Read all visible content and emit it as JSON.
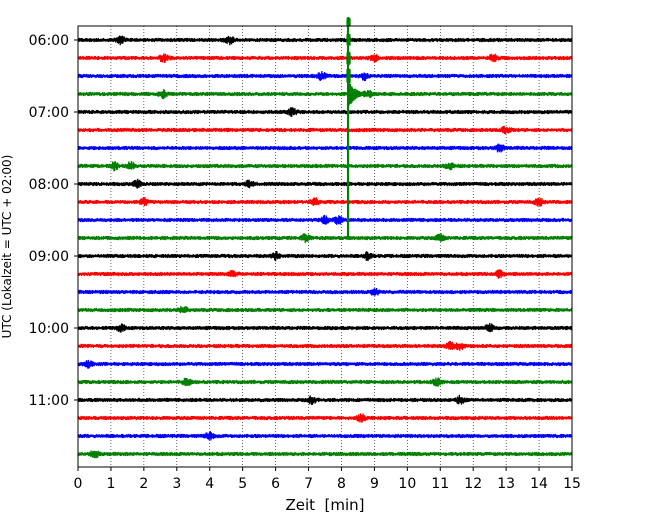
{
  "chart_data": {
    "type": "line",
    "title": "",
    "xlabel": "Zeit  [min]",
    "ylabel": "UTC (Lokalzeit = UTC + 02:00)",
    "xlim": [
      0,
      15
    ],
    "x_ticks": [
      0,
      1,
      2,
      3,
      4,
      5,
      6,
      7,
      8,
      9,
      10,
      11,
      12,
      13,
      14,
      15
    ],
    "x_tick_labels": [
      "0",
      "1",
      "2",
      "3",
      "4",
      "5",
      "6",
      "7",
      "8",
      "9",
      "10",
      "11",
      "12",
      "13",
      "14",
      "15"
    ],
    "y_tick_labels": [
      "06:00",
      "07:00",
      "08:00",
      "09:00",
      "10:00",
      "11:00"
    ],
    "y_tick_rows": [
      0,
      4,
      8,
      12,
      16,
      20
    ],
    "grid": "vertical-dotted",
    "trace_colors": [
      "#000000",
      "#ff0000",
      "#0000ff",
      "#008000"
    ],
    "rows": [
      {
        "start": "06:00",
        "color": "#000000"
      },
      {
        "start": "06:15",
        "color": "#ff0000"
      },
      {
        "start": "06:30",
        "color": "#0000ff"
      },
      {
        "start": "06:45",
        "color": "#008000"
      },
      {
        "start": "07:00",
        "color": "#000000"
      },
      {
        "start": "07:15",
        "color": "#ff0000"
      },
      {
        "start": "07:30",
        "color": "#0000ff"
      },
      {
        "start": "07:45",
        "color": "#008000"
      },
      {
        "start": "08:00",
        "color": "#000000"
      },
      {
        "start": "08:15",
        "color": "#ff0000"
      },
      {
        "start": "08:30",
        "color": "#0000ff"
      },
      {
        "start": "08:45",
        "color": "#008000"
      },
      {
        "start": "09:00",
        "color": "#000000"
      },
      {
        "start": "09:15",
        "color": "#ff0000"
      },
      {
        "start": "09:30",
        "color": "#0000ff"
      },
      {
        "start": "09:45",
        "color": "#008000"
      },
      {
        "start": "10:00",
        "color": "#000000"
      },
      {
        "start": "10:15",
        "color": "#ff0000"
      },
      {
        "start": "10:30",
        "color": "#0000ff"
      },
      {
        "start": "10:45",
        "color": "#008000"
      },
      {
        "start": "11:00",
        "color": "#000000"
      },
      {
        "start": "11:15",
        "color": "#ff0000"
      },
      {
        "start": "11:30",
        "color": "#0000ff"
      },
      {
        "start": "11:45",
        "color": "#008000"
      }
    ],
    "event": {
      "row": 3,
      "time_min": 8.2,
      "rows_spanned_up": 3.8,
      "rows_spanned_down": 8.1,
      "color": "#008000"
    },
    "bursts": [
      {
        "row": 0,
        "x": 4.6
      },
      {
        "row": 0,
        "x": 1.3
      },
      {
        "row": 1,
        "x": 2.6
      },
      {
        "row": 1,
        "x": 9.0
      },
      {
        "row": 1,
        "x": 12.6
      },
      {
        "row": 2,
        "x": 7.4
      },
      {
        "row": 2,
        "x": 8.7
      },
      {
        "row": 3,
        "x": 2.6
      },
      {
        "row": 3,
        "x": 8.8
      },
      {
        "row": 4,
        "x": 6.5
      },
      {
        "row": 5,
        "x": 13.0
      },
      {
        "row": 6,
        "x": 12.8
      },
      {
        "row": 7,
        "x": 1.1
      },
      {
        "row": 7,
        "x": 1.6
      },
      {
        "row": 7,
        "x": 11.3
      },
      {
        "row": 8,
        "x": 5.2
      },
      {
        "row": 8,
        "x": 1.8
      },
      {
        "row": 9,
        "x": 2.0
      },
      {
        "row": 9,
        "x": 7.2
      },
      {
        "row": 9,
        "x": 14.0
      },
      {
        "row": 10,
        "x": 7.5
      },
      {
        "row": 10,
        "x": 7.9
      },
      {
        "row": 11,
        "x": 6.9
      },
      {
        "row": 11,
        "x": 11.0
      },
      {
        "row": 12,
        "x": 8.8
      },
      {
        "row": 12,
        "x": 6.0
      },
      {
        "row": 13,
        "x": 4.7
      },
      {
        "row": 13,
        "x": 12.8
      },
      {
        "row": 14,
        "x": 9.0
      },
      {
        "row": 15,
        "x": 3.2
      },
      {
        "row": 16,
        "x": 1.3
      },
      {
        "row": 16,
        "x": 12.5
      },
      {
        "row": 17,
        "x": 11.3
      },
      {
        "row": 17,
        "x": 11.6
      },
      {
        "row": 18,
        "x": 0.3
      },
      {
        "row": 19,
        "x": 3.3
      },
      {
        "row": 19,
        "x": 10.9
      },
      {
        "row": 20,
        "x": 11.6
      },
      {
        "row": 20,
        "x": 7.1
      },
      {
        "row": 21,
        "x": 8.6
      },
      {
        "row": 22,
        "x": 4.0
      },
      {
        "row": 23,
        "x": 0.5
      }
    ]
  }
}
